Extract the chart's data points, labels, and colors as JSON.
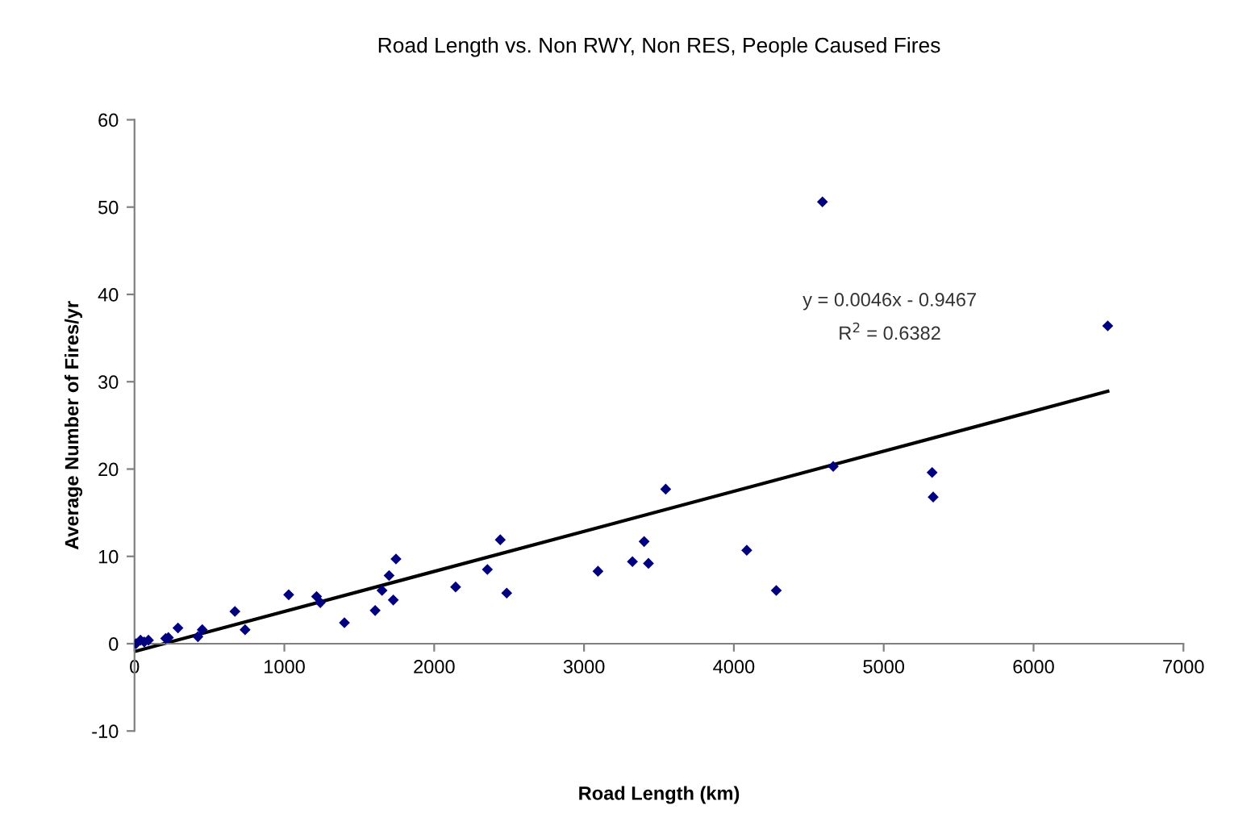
{
  "chart_data": {
    "type": "scatter",
    "title": "Road Length vs. Non RWY, Non RES, People Caused Fires",
    "xlabel": "Road Length (km)",
    "ylabel": "Average Number of Fires/yr",
    "series": [
      {
        "color": "#000080",
        "marker": "diamond",
        "x": [
          10,
          40,
          65,
          93,
          208,
          226,
          290,
          423,
          452,
          670,
          738,
          1029,
          1215,
          1240,
          1401,
          1606,
          1652,
          1699,
          1727,
          1745,
          2143,
          2355,
          2441,
          2484,
          3093,
          3323,
          3401,
          3430,
          3545,
          4086,
          4283,
          4591,
          4663,
          5323,
          5330,
          6495
        ],
        "values": [
          0,
          0.4,
          0.2,
          0.4,
          0.6,
          0.7,
          1.8,
          0.8,
          1.6,
          3.7,
          1.6,
          5.6,
          5.4,
          4.7,
          2.4,
          3.8,
          6.1,
          7.8,
          5.0,
          9.7,
          6.5,
          8.5,
          11.9,
          5.8,
          8.3,
          9.4,
          11.7,
          9.2,
          17.7,
          10.7,
          6.1,
          50.6,
          20.3,
          19.6,
          16.8,
          36.4
        ]
      },
      {
        "type": "line",
        "color": "#000000",
        "marker": "none",
        "line_style": "solid",
        "x": [
          0,
          6495
        ],
        "values": [
          -0.9,
          28.9
        ]
      }
    ],
    "annotations": [
      "y = 0.0046x - 0.9467",
      "R$^{2}$ = 0.6382"
    ],
    "xlim": [
      0,
      7000
    ],
    "xticks": [
      0,
      1000,
      2000,
      3000,
      4000,
      5000,
      6000,
      7000
    ],
    "ylim": [
      -10,
      60
    ],
    "yticks": [
      -10,
      0,
      10,
      20,
      30,
      40,
      50,
      60
    ],
    "grid": false,
    "legend": false
  }
}
